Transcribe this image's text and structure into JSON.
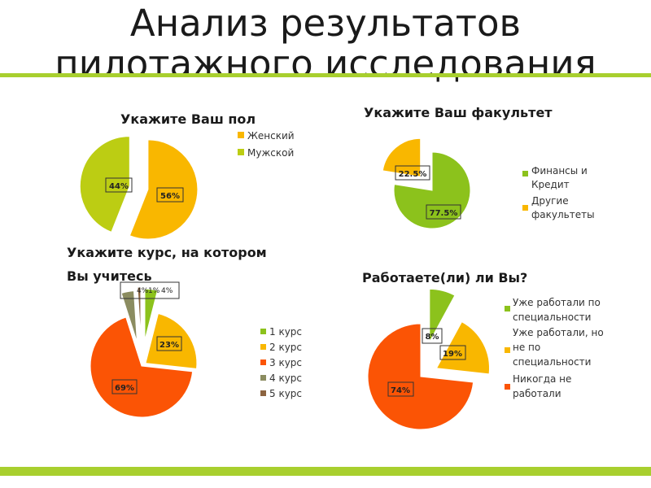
{
  "title_line1": "Анализ результатов",
  "title_line2": "пилотажного исследования",
  "colors": {
    "bar": "#a8cf2e",
    "orange": "#f9b700",
    "olive": "#bccd13",
    "green": "#8cc21c",
    "red": "#fb5405",
    "gray_olive": "#8b8c60",
    "brown": "#8c6440"
  },
  "chart_data": [
    {
      "type": "pie",
      "title": "Укажите Ваш пол",
      "legend": [
        "Женский",
        "Мужской"
      ],
      "values": [
        56,
        44
      ],
      "labels": [
        "56%",
        "44%"
      ],
      "legend_position": "right"
    },
    {
      "type": "pie",
      "title": "Укажите Ваш факультет",
      "legend": [
        "Финансы и Кредит",
        "Другие факультеты"
      ],
      "values": [
        77.5,
        22.5
      ],
      "labels": [
        "77.5%",
        "22.5%"
      ],
      "legend_position": "right"
    },
    {
      "type": "pie",
      "title": "Укажите курс, на котором Вы учитесь",
      "legend": [
        "1 курс",
        "2 курс",
        "3 курс",
        "4 курс",
        "5 курс"
      ],
      "values": [
        4,
        23,
        69,
        4,
        1
      ],
      "labels": [
        "4%",
        "23%",
        "69%",
        "4%",
        "1%"
      ],
      "legend_position": "right"
    },
    {
      "type": "pie",
      "title": "Работаете(ли) ли Вы?",
      "legend": [
        "Уже работали по специальности",
        "Уже работали, но не по специальности",
        "Никогда не работали"
      ],
      "values": [
        8,
        19,
        74
      ],
      "labels": [
        "8%",
        "19%",
        "74%"
      ],
      "legend_position": "right"
    }
  ]
}
